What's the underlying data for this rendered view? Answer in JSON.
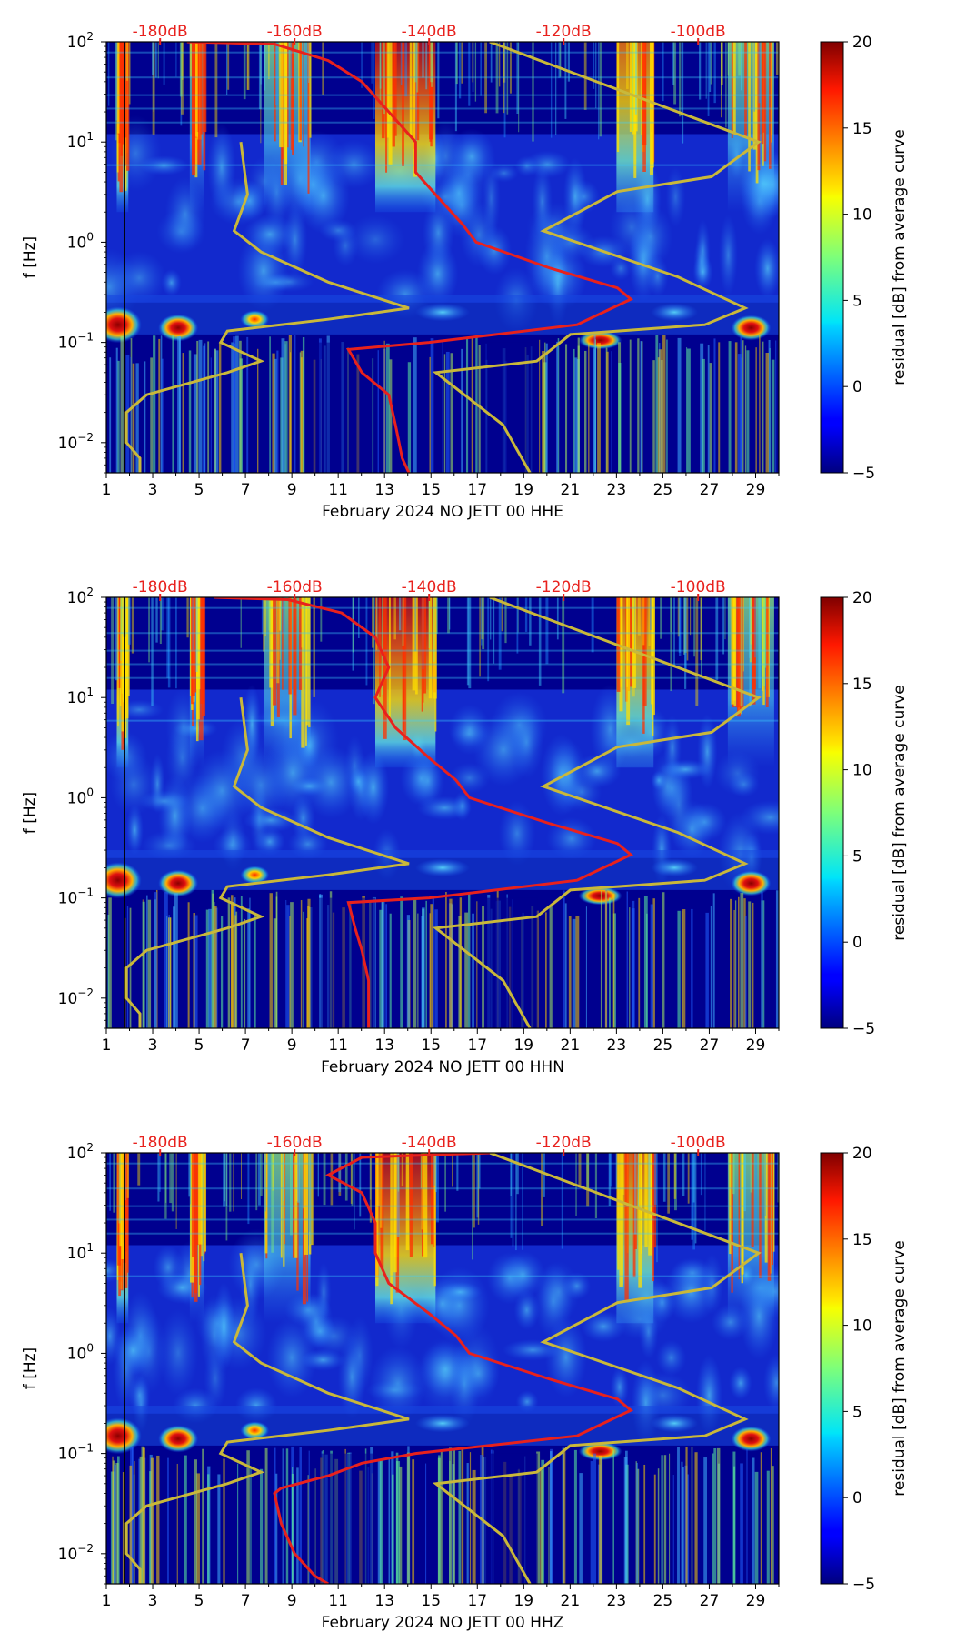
{
  "figure_type": "spectrogram residual (PPSD-style)",
  "chart_data": [
    {
      "type": "heatmap",
      "xlabel": "February 2024 NO JETT 00 HHE",
      "ylabel": "f [Hz]",
      "x_ticks": [
        "1",
        "3",
        "5",
        "7",
        "9",
        "11",
        "13",
        "15",
        "17",
        "19",
        "21",
        "23",
        "25",
        "27",
        "29"
      ],
      "x_range_days": [
        1,
        30
      ],
      "y_ticks": [
        {
          "base": "10",
          "exp": "2",
          "value": 100
        },
        {
          "base": "10",
          "exp": "1",
          "value": 10
        },
        {
          "base": "10",
          "exp": "0",
          "value": 1
        },
        {
          "base": "10",
          "exp": "−1",
          "value": 0.1
        },
        {
          "base": "10",
          "exp": "−2",
          "value": 0.01
        }
      ],
      "ylim_hz": [
        0.005,
        100
      ],
      "y_scale": "log",
      "top_axis_labels": [
        "-180dB",
        "-160dB",
        "-140dB",
        "-120dB",
        "-100dB"
      ],
      "top_axis_db_range": [
        -188,
        -88
      ],
      "colorbar": {
        "label": "residual [dB] from average curve",
        "ticks": [
          "20",
          "15",
          "10",
          "5",
          "0",
          "−5"
        ],
        "range": [
          -5,
          20
        ],
        "colormap": "jet"
      },
      "series": [
        {
          "name": "average PSD curve",
          "color": "#e8211d",
          "points": [
            [
              -176,
              100
            ],
            [
              -163,
              95
            ],
            [
              -155,
              65
            ],
            [
              -150,
              40
            ],
            [
              -146,
              20
            ],
            [
              -142,
              10
            ],
            [
              -142,
              5
            ],
            [
              -138,
              2.5
            ],
            [
              -135,
              1.5
            ],
            [
              -133,
              1
            ],
            [
              -122,
              0.55
            ],
            [
              -112,
              0.35
            ],
            [
              -110,
              0.27
            ],
            [
              -118,
              0.15
            ],
            [
              -140,
              0.1
            ],
            [
              -152,
              0.085
            ],
            [
              -150,
              0.05
            ],
            [
              -146,
              0.03
            ],
            [
              -145,
              0.015
            ],
            [
              -144,
              0.007
            ],
            [
              -143,
              0.005
            ]
          ]
        },
        {
          "name": "NLNM/NHNM model curves",
          "color": "#c9b83a",
          "points_low": [
            [
              -168,
              10
            ],
            [
              -167,
              3
            ],
            [
              -169,
              1.3
            ],
            [
              -165,
              0.8
            ],
            [
              -155,
              0.4
            ],
            [
              -143,
              0.22
            ],
            [
              -155,
              0.17
            ],
            [
              -170,
              0.13
            ],
            [
              -171,
              0.1
            ],
            [
              -165,
              0.065
            ],
            [
              -170,
              0.05
            ],
            [
              -182,
              0.03
            ],
            [
              -185,
              0.02
            ],
            [
              -185,
              0.01
            ],
            [
              -183,
              0.007
            ],
            [
              -183,
              0.005
            ]
          ],
          "points_high": [
            [
              -131,
              100
            ],
            [
              -91,
              10
            ],
            [
              -98,
              4.5
            ],
            [
              -112,
              3.2
            ],
            [
              -123,
              1.3
            ],
            [
              -103,
              0.45
            ],
            [
              -93,
              0.22
            ],
            [
              -99,
              0.15
            ],
            [
              -119,
              0.12
            ],
            [
              -124,
              0.065
            ],
            [
              -139,
              0.05
            ],
            [
              -129,
              0.015
            ],
            [
              -125,
              0.005
            ]
          ]
        }
      ]
    },
    {
      "type": "heatmap",
      "xlabel": "February 2024 NO JETT 00 HHN",
      "ylabel": "f [Hz]",
      "x_ticks": [
        "1",
        "3",
        "5",
        "7",
        "9",
        "11",
        "13",
        "15",
        "17",
        "19",
        "21",
        "23",
        "25",
        "27",
        "29"
      ],
      "x_range_days": [
        1,
        30
      ],
      "y_ticks": [
        {
          "base": "10",
          "exp": "2",
          "value": 100
        },
        {
          "base": "10",
          "exp": "1",
          "value": 10
        },
        {
          "base": "10",
          "exp": "0",
          "value": 1
        },
        {
          "base": "10",
          "exp": "−1",
          "value": 0.1
        },
        {
          "base": "10",
          "exp": "−2",
          "value": 0.01
        }
      ],
      "ylim_hz": [
        0.005,
        100
      ],
      "y_scale": "log",
      "top_axis_labels": [
        "-180dB",
        "-160dB",
        "-140dB",
        "-120dB",
        "-100dB"
      ],
      "top_axis_db_range": [
        -188,
        -88
      ],
      "colorbar": {
        "label": "residual [dB] from average curve",
        "ticks": [
          "20",
          "15",
          "10",
          "5",
          "0",
          "−5"
        ],
        "range": [
          -5,
          20
        ],
        "colormap": "jet"
      },
      "series": [
        {
          "name": "average PSD curve",
          "color": "#e8211d",
          "points": [
            [
              -172,
              100
            ],
            [
              -161,
              95
            ],
            [
              -153,
              70
            ],
            [
              -148,
              40
            ],
            [
              -146,
              20
            ],
            [
              -148,
              10
            ],
            [
              -145,
              5
            ],
            [
              -140,
              2.5
            ],
            [
              -136,
              1.5
            ],
            [
              -134,
              1
            ],
            [
              -122,
              0.55
            ],
            [
              -112,
              0.35
            ],
            [
              -110,
              0.27
            ],
            [
              -118,
              0.15
            ],
            [
              -140,
              0.1
            ],
            [
              -152,
              0.09
            ],
            [
              -151,
              0.05
            ],
            [
              -150,
              0.03
            ],
            [
              -149,
              0.015
            ],
            [
              -149,
              0.005
            ]
          ]
        },
        {
          "name": "NLNM/NHNM model curves",
          "color": "#c9b83a",
          "points_low": [
            [
              -168,
              10
            ],
            [
              -167,
              3
            ],
            [
              -169,
              1.3
            ],
            [
              -165,
              0.8
            ],
            [
              -155,
              0.4
            ],
            [
              -143,
              0.22
            ],
            [
              -155,
              0.17
            ],
            [
              -170,
              0.13
            ],
            [
              -171,
              0.1
            ],
            [
              -165,
              0.065
            ],
            [
              -170,
              0.05
            ],
            [
              -182,
              0.03
            ],
            [
              -185,
              0.02
            ],
            [
              -185,
              0.01
            ],
            [
              -183,
              0.007
            ],
            [
              -183,
              0.005
            ]
          ],
          "points_high": [
            [
              -131,
              100
            ],
            [
              -91,
              10
            ],
            [
              -98,
              4.5
            ],
            [
              -112,
              3.2
            ],
            [
              -123,
              1.3
            ],
            [
              -103,
              0.45
            ],
            [
              -93,
              0.22
            ],
            [
              -99,
              0.15
            ],
            [
              -119,
              0.12
            ],
            [
              -124,
              0.065
            ],
            [
              -139,
              0.05
            ],
            [
              -129,
              0.015
            ],
            [
              -125,
              0.005
            ]
          ]
        }
      ]
    },
    {
      "type": "heatmap",
      "xlabel": "February 2024 NO JETT 00 HHZ",
      "ylabel": "f [Hz]",
      "x_ticks": [
        "1",
        "3",
        "5",
        "7",
        "9",
        "11",
        "13",
        "15",
        "17",
        "19",
        "21",
        "23",
        "25",
        "27",
        "29"
      ],
      "x_range_days": [
        1,
        30
      ],
      "y_ticks": [
        {
          "base": "10",
          "exp": "2",
          "value": 100
        },
        {
          "base": "10",
          "exp": "1",
          "value": 10
        },
        {
          "base": "10",
          "exp": "0",
          "value": 1
        },
        {
          "base": "10",
          "exp": "−1",
          "value": 0.1
        },
        {
          "base": "10",
          "exp": "−2",
          "value": 0.01
        }
      ],
      "ylim_hz": [
        0.005,
        100
      ],
      "y_scale": "log",
      "top_axis_labels": [
        "-180dB",
        "-160dB",
        "-140dB",
        "-120dB",
        "-100dB"
      ],
      "top_axis_db_range": [
        -188,
        -88
      ],
      "colorbar": {
        "label": "residual [dB] from average curve",
        "ticks": [
          "20",
          "15",
          "10",
          "5",
          "0",
          "−5"
        ],
        "range": [
          -5,
          20
        ],
        "colormap": "jet"
      },
      "series": [
        {
          "name": "average PSD curve",
          "color": "#e8211d",
          "points": [
            [
              -131,
              100
            ],
            [
              -150,
              90
            ],
            [
              -155,
              60
            ],
            [
              -150,
              40
            ],
            [
              -148,
              20
            ],
            [
              -148,
              10
            ],
            [
              -146,
              5
            ],
            [
              -140,
              2.5
            ],
            [
              -136,
              1.5
            ],
            [
              -134,
              1
            ],
            [
              -122,
              0.55
            ],
            [
              -112,
              0.35
            ],
            [
              -110,
              0.27
            ],
            [
              -118,
              0.15
            ],
            [
              -142,
              0.1
            ],
            [
              -150,
              0.08
            ],
            [
              -155,
              0.06
            ],
            [
              -162,
              0.045
            ],
            [
              -163,
              0.04
            ],
            [
              -162,
              0.02
            ],
            [
              -160,
              0.01
            ],
            [
              -157,
              0.006
            ],
            [
              -155,
              0.005
            ]
          ]
        },
        {
          "name": "NLNM/NHNM model curves",
          "color": "#c9b83a",
          "points_low": [
            [
              -168,
              10
            ],
            [
              -167,
              3
            ],
            [
              -169,
              1.3
            ],
            [
              -165,
              0.8
            ],
            [
              -155,
              0.4
            ],
            [
              -143,
              0.22
            ],
            [
              -155,
              0.17
            ],
            [
              -170,
              0.13
            ],
            [
              -171,
              0.1
            ],
            [
              -165,
              0.065
            ],
            [
              -170,
              0.05
            ],
            [
              -182,
              0.03
            ],
            [
              -185,
              0.02
            ],
            [
              -185,
              0.01
            ],
            [
              -183,
              0.007
            ],
            [
              -183,
              0.005
            ]
          ],
          "points_high": [
            [
              -131,
              100
            ],
            [
              -91,
              10
            ],
            [
              -98,
              4.5
            ],
            [
              -112,
              3.2
            ],
            [
              -123,
              1.3
            ],
            [
              -103,
              0.45
            ],
            [
              -93,
              0.22
            ],
            [
              -99,
              0.15
            ],
            [
              -119,
              0.12
            ],
            [
              -124,
              0.065
            ],
            [
              -139,
              0.05
            ],
            [
              -129,
              0.015
            ],
            [
              -125,
              0.005
            ]
          ]
        }
      ]
    }
  ],
  "colors": {
    "average_curve": "#e8211d",
    "model_curves": "#c9b83a",
    "top_labels": "#e8211d",
    "background_low": "#00008f"
  }
}
